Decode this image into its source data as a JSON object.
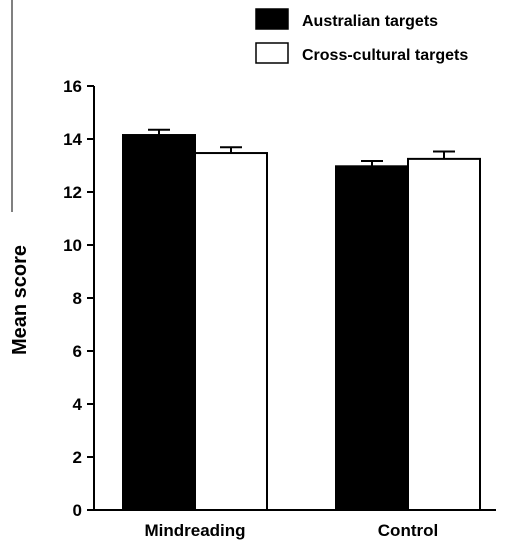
{
  "chart_data": {
    "type": "bar",
    "title": "",
    "xlabel": "",
    "ylabel": "Mean score",
    "ylim": [
      0,
      16
    ],
    "yticks": [
      0,
      2,
      4,
      6,
      8,
      10,
      12,
      14,
      16
    ],
    "grid": false,
    "legend_position": "top-right",
    "categories": [
      "Mindreading",
      "Control"
    ],
    "series": [
      {
        "name": "Australian targets",
        "color": "#000000",
        "values": [
          14.15,
          12.97
        ],
        "errors": [
          0.2,
          0.2
        ]
      },
      {
        "name": "Cross-cultural targets",
        "color": "#ffffff",
        "values": [
          13.47,
          13.25
        ],
        "errors": [
          0.22,
          0.28
        ]
      }
    ]
  }
}
